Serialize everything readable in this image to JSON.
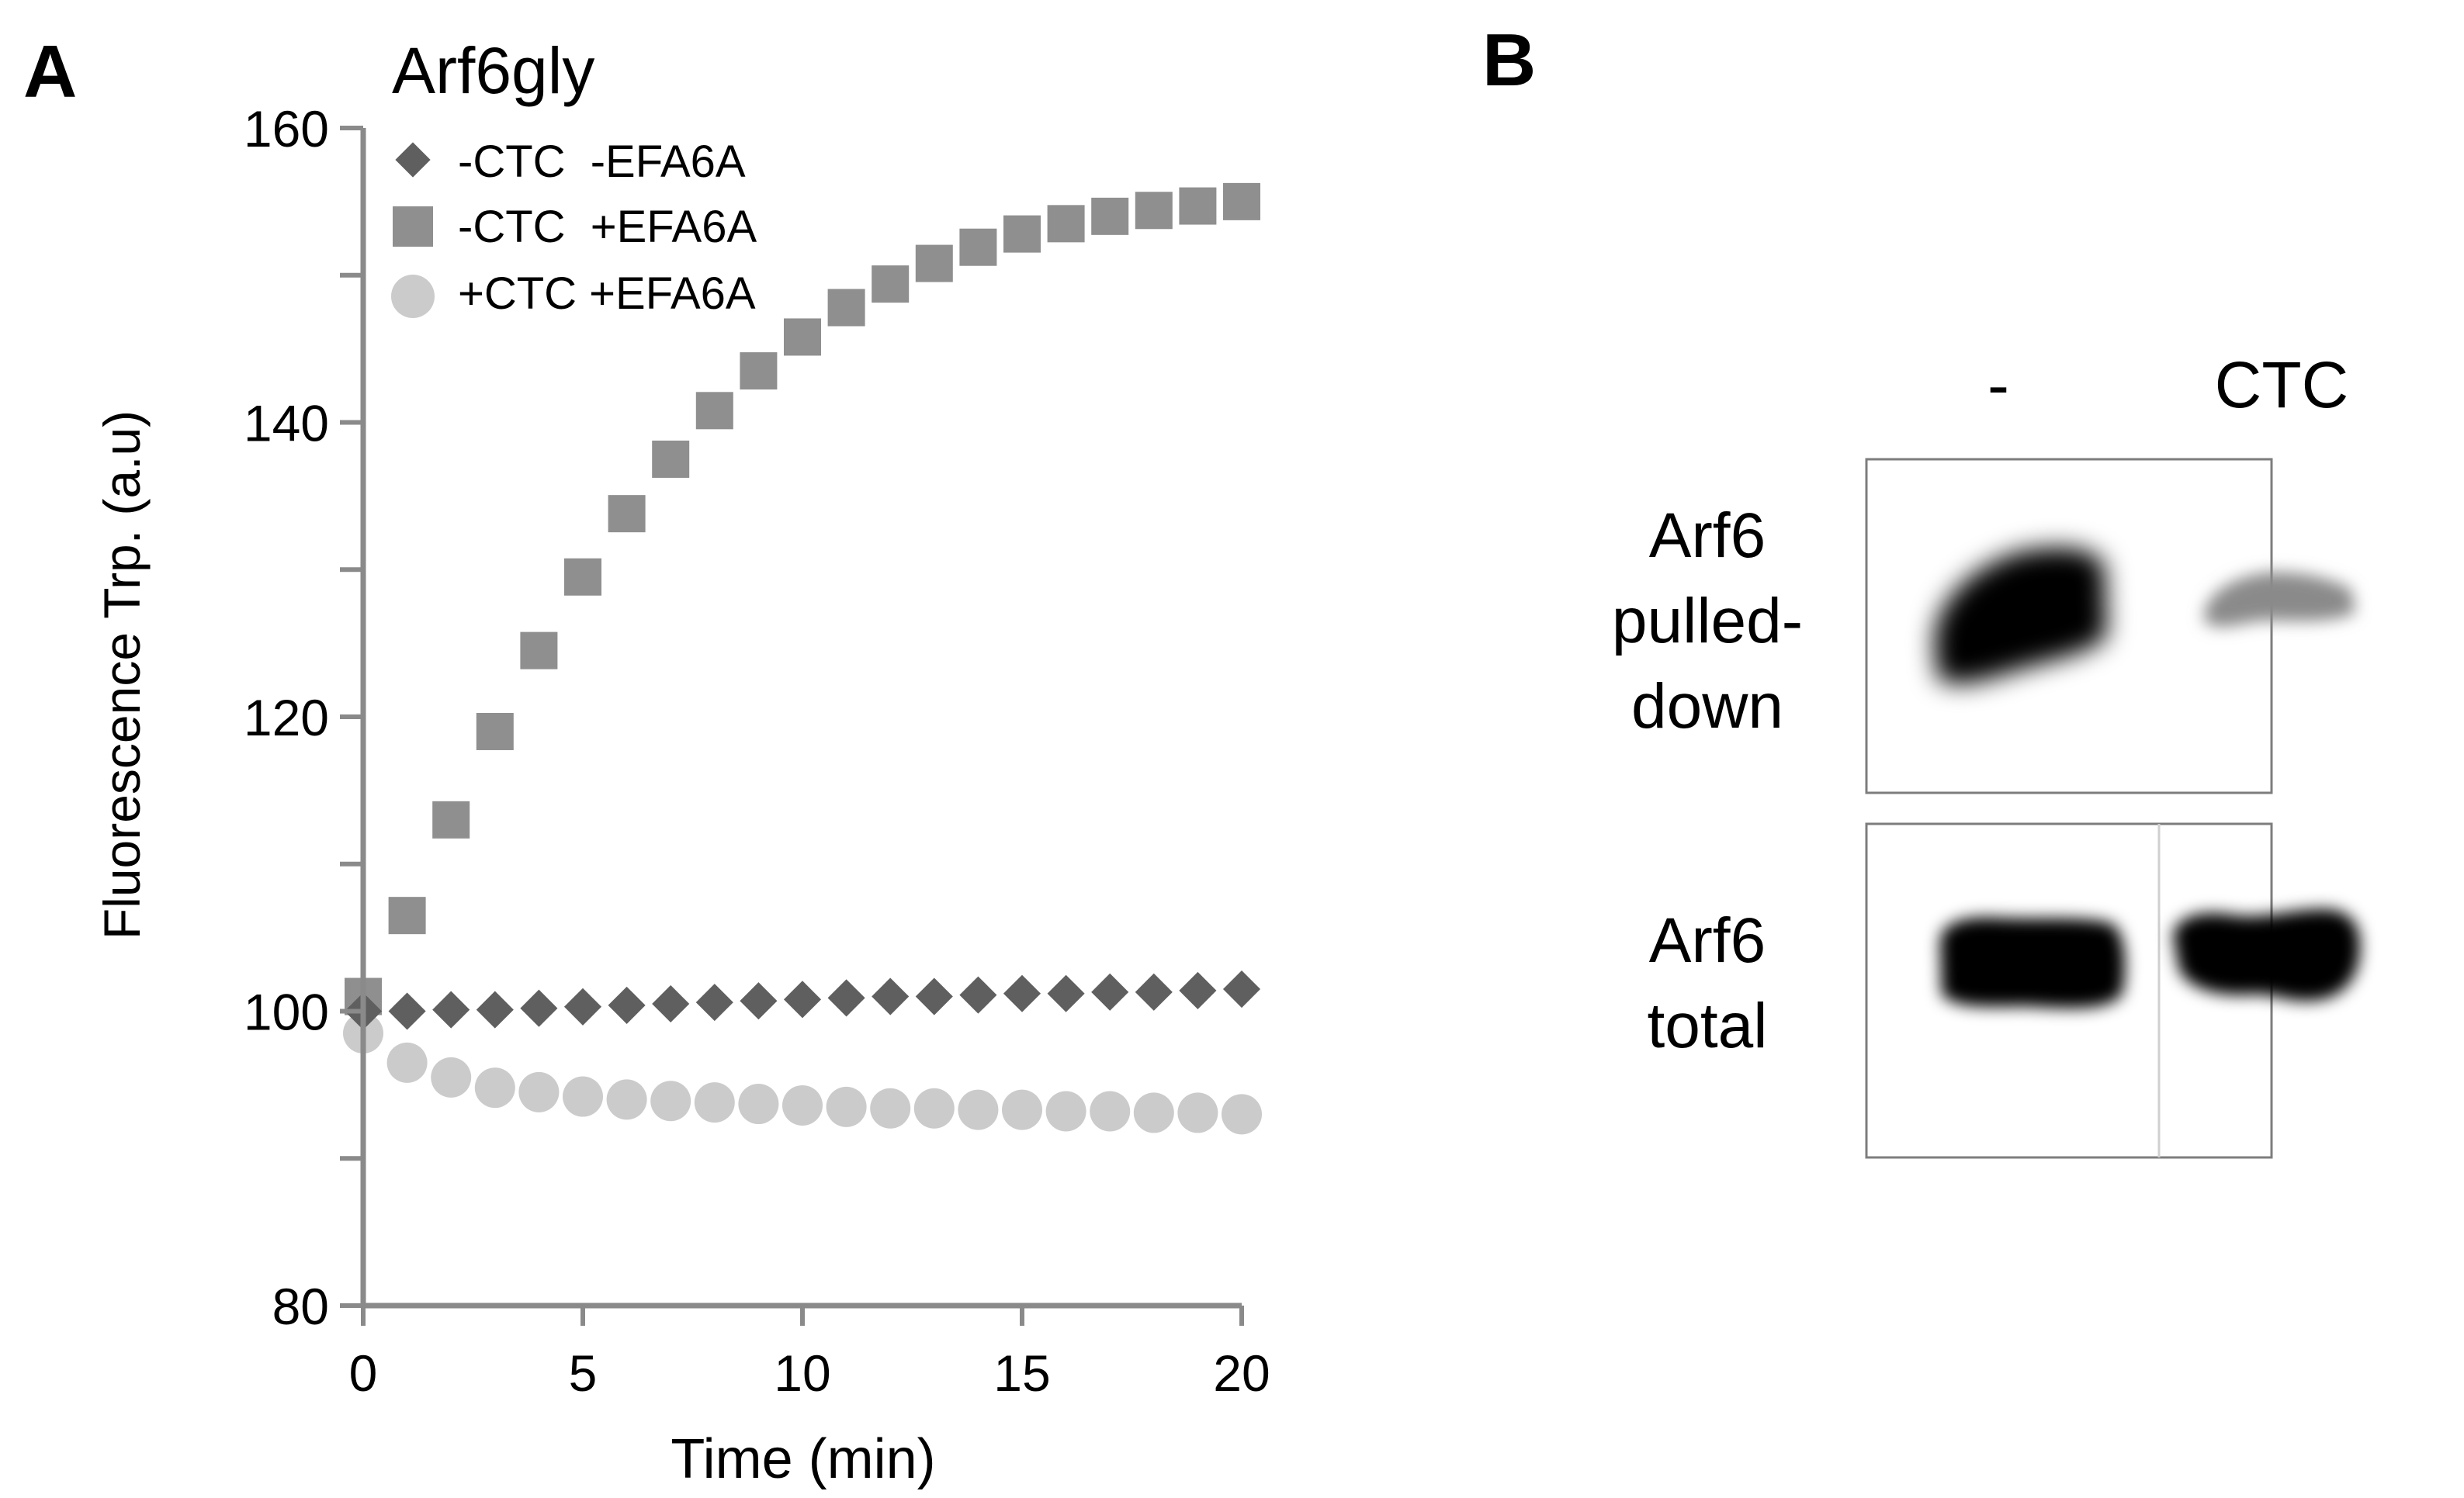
{
  "panel_a": {
    "letter": "A",
    "chart_data": {
      "type": "scatter",
      "title": "Arf6gly",
      "xlabel": "Time (min)",
      "ylabel": "Fluorescence Trp. (a.u)",
      "xlim": [
        0,
        20
      ],
      "ylim": [
        80,
        160
      ],
      "xticks": [
        0,
        5,
        10,
        15,
        20
      ],
      "yticks_labeled": [
        80,
        100,
        120,
        140,
        160
      ],
      "yticks_minor": [
        90,
        110,
        130,
        150
      ],
      "legend_position": "top-left",
      "series": [
        {
          "name": "-CTC  -EFA6A",
          "marker": "diamond",
          "color": "#5f5f5f",
          "x": [
            0,
            1,
            2,
            3,
            4,
            5,
            6,
            7,
            8,
            9,
            10,
            11,
            12,
            13,
            14,
            15,
            16,
            17,
            18,
            19,
            20
          ],
          "y": [
            100,
            100,
            100.1,
            100.1,
            100.2,
            100.3,
            100.4,
            100.5,
            100.6,
            100.7,
            100.8,
            100.9,
            101,
            101,
            101.1,
            101.2,
            101.2,
            101.3,
            101.3,
            101.4,
            101.5
          ]
        },
        {
          "name": "-CTC  +EFA6A",
          "marker": "square",
          "color": "#8f8f8f",
          "x": [
            0,
            1,
            2,
            3,
            4,
            5,
            6,
            7,
            8,
            9,
            10,
            11,
            12,
            13,
            14,
            15,
            16,
            17,
            18,
            19,
            20
          ],
          "y": [
            101,
            106.5,
            113,
            119,
            124.5,
            129.5,
            133.8,
            137.5,
            140.8,
            143.5,
            145.8,
            147.8,
            149.4,
            150.8,
            151.9,
            152.8,
            153.5,
            154,
            154.4,
            154.7,
            155
          ]
        },
        {
          "name": "+CTC +EFA6A",
          "marker": "circle",
          "color": "#cbcbcb",
          "x": [
            0,
            1,
            2,
            3,
            4,
            5,
            6,
            7,
            8,
            9,
            10,
            11,
            12,
            13,
            14,
            15,
            16,
            17,
            18,
            19,
            20
          ],
          "y": [
            98.5,
            96.5,
            95.5,
            94.8,
            94.5,
            94.2,
            94,
            93.9,
            93.8,
            93.7,
            93.6,
            93.5,
            93.4,
            93.4,
            93.3,
            93.3,
            93.2,
            93.2,
            93.1,
            93.1,
            93
          ]
        }
      ]
    }
  },
  "panel_b": {
    "letter": "B",
    "lanes": [
      "-",
      "CTC"
    ],
    "blots": [
      {
        "label_lines": [
          "Arf6",
          "pulled-",
          "down"
        ]
      },
      {
        "label_lines": [
          "Arf6",
          "total"
        ]
      }
    ]
  }
}
